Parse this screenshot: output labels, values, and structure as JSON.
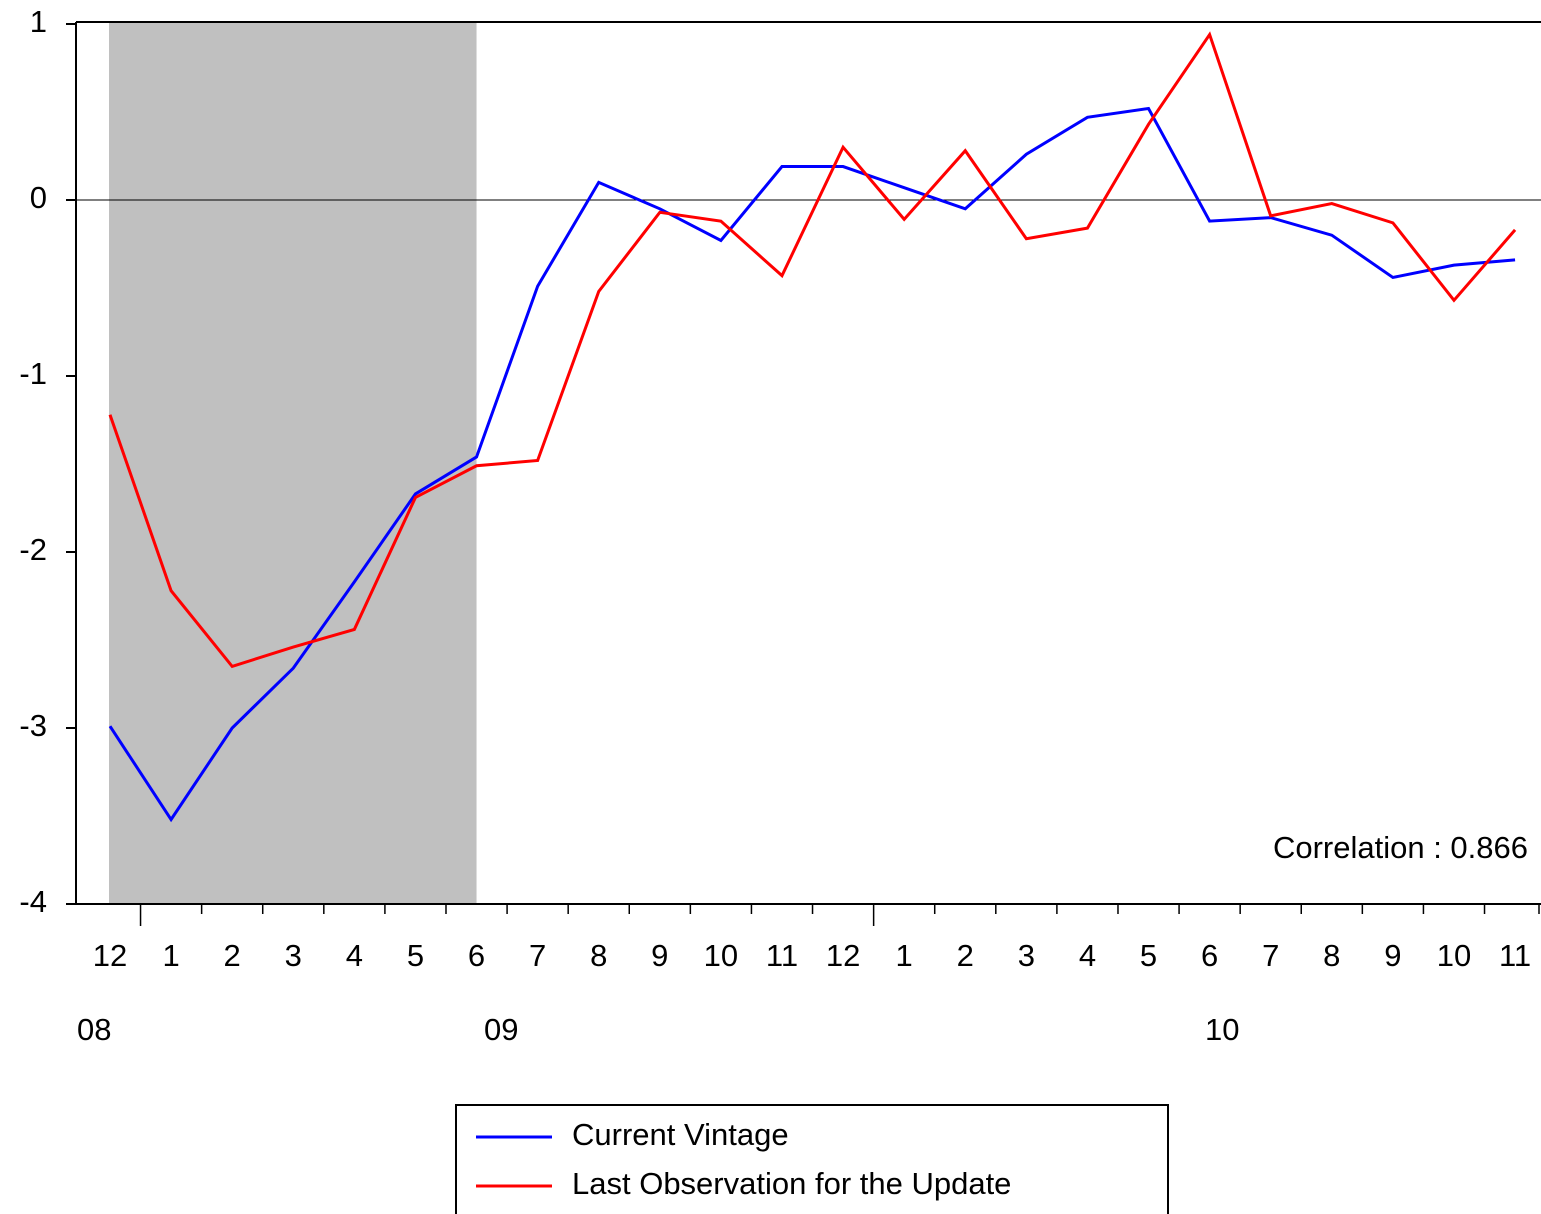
{
  "chart_data": {
    "type": "line",
    "categories": [
      "12",
      "1",
      "2",
      "3",
      "4",
      "5",
      "6",
      "7",
      "8",
      "9",
      "10",
      "11",
      "12",
      "1",
      "2",
      "3",
      "4",
      "5",
      "6",
      "7",
      "8",
      "9",
      "10",
      "11"
    ],
    "year_labels": [
      "08",
      "09",
      "10"
    ],
    "series": [
      {
        "name": "Current Vintage",
        "color": "#0000ff",
        "values": [
          -2.99,
          -3.52,
          -3.0,
          -2.66,
          -2.17,
          -1.67,
          -1.46,
          -0.49,
          0.1,
          -0.05,
          -0.23,
          0.19,
          0.19,
          0.07,
          -0.05,
          0.26,
          0.47,
          0.52,
          -0.12,
          -0.1,
          -0.2,
          -0.44,
          -0.37,
          -0.34
        ]
      },
      {
        "name": "Last Observation for the Update",
        "color": "#ff0000",
        "values": [
          -1.22,
          -2.22,
          -2.65,
          -2.54,
          -2.44,
          -1.69,
          -1.51,
          -1.48,
          -0.52,
          -0.07,
          -0.12,
          -0.43,
          0.3,
          -0.11,
          0.28,
          -0.22,
          -0.16,
          0.43,
          0.94,
          -0.09,
          -0.02,
          -0.13,
          -0.57,
          -0.17
        ]
      }
    ],
    "shaded_categories": [
      0,
      6
    ],
    "shade_color": "#c0c0c0",
    "annotation": "Correlation : 0.866",
    "ylim": [
      -4,
      1
    ],
    "yticks": [
      -4,
      -3,
      -2,
      -1,
      0,
      1
    ],
    "zero_line": true
  }
}
